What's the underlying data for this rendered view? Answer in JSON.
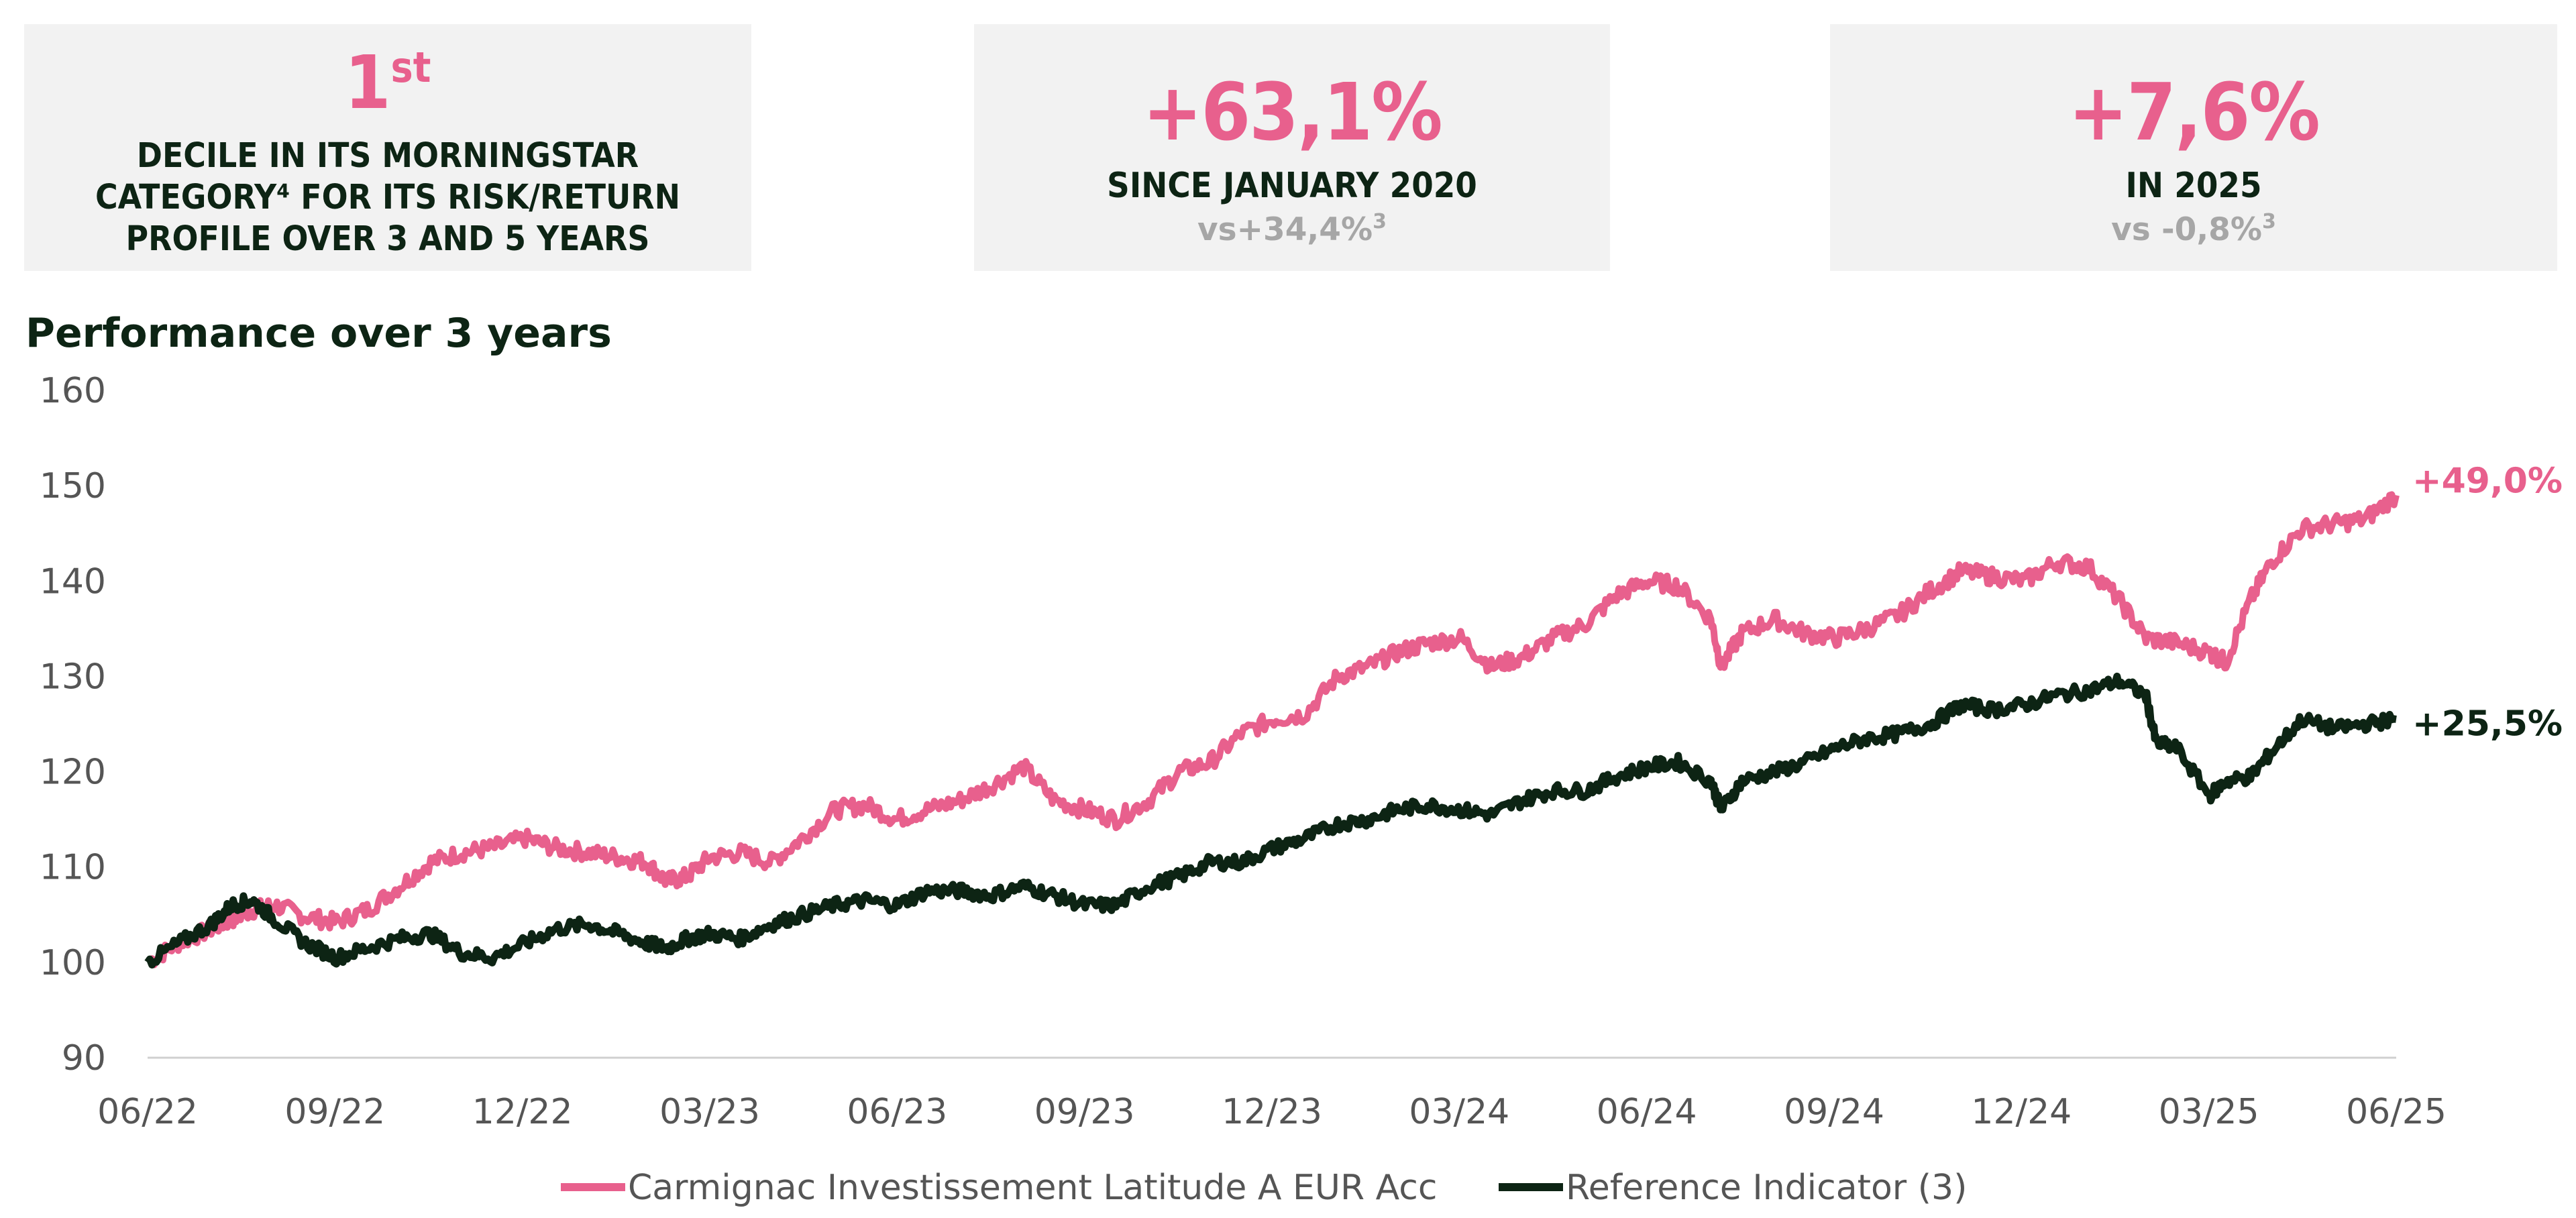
{
  "cards": [
    {
      "big": "1",
      "big_sup": "st",
      "sub": "DECILE IN ITS MORNINGSTAR CATEGORY⁴ FOR ITS RISK/RETURN PROFILE OVER 3 AND 5 YEARS"
    },
    {
      "big": "+63,1%",
      "sub": "SINCE JANUARY 2020",
      "vs": "vs+34,4%",
      "vs_sup": "3"
    },
    {
      "big": "+7,6%",
      "sub": "IN 2025",
      "vs": "vs -0,8%",
      "vs_sup": "3"
    }
  ],
  "colors": {
    "fund": "#e8608d",
    "reference": "#0d2414",
    "axis_text": "#555555",
    "card_bg": "#f2f2f2",
    "muted": "#a6a6a6"
  },
  "chart_data": {
    "type": "line",
    "title": "Performance over 3 years",
    "xlabel": "",
    "ylabel": "",
    "x_ticks": [
      "06/22",
      "09/22",
      "12/22",
      "03/23",
      "06/23",
      "09/23",
      "12/23",
      "03/24",
      "06/24",
      "09/24",
      "12/24",
      "03/25",
      "06/25"
    ],
    "xlim": [
      "2022-06",
      "2025-06"
    ],
    "y_ticks": [
      90,
      100,
      110,
      120,
      130,
      140,
      150,
      160
    ],
    "ylim": [
      90,
      160
    ],
    "grid": false,
    "legend_position": "bottom",
    "series": [
      {
        "name": "Carmignac Investissement Latitude A EUR Acc",
        "end_label": "+49,0%",
        "x": [
          "2022-06-30",
          "2022-07-15",
          "2022-07-31",
          "2022-08-10",
          "2022-08-20",
          "2022-08-31",
          "2022-09-15",
          "2022-09-30",
          "2022-10-15",
          "2022-10-31",
          "2022-11-15",
          "2022-11-30",
          "2022-12-15",
          "2022-12-31",
          "2023-01-15",
          "2023-01-31",
          "2023-02-15",
          "2023-02-28",
          "2023-03-10",
          "2023-03-20",
          "2023-03-31",
          "2023-04-15",
          "2023-04-30",
          "2023-05-15",
          "2023-05-31",
          "2023-06-15",
          "2023-06-30",
          "2023-07-15",
          "2023-07-31",
          "2023-08-15",
          "2023-08-31",
          "2023-09-15",
          "2023-09-30",
          "2023-10-15",
          "2023-10-31",
          "2023-11-15",
          "2023-11-30",
          "2023-12-15",
          "2023-12-31",
          "2024-01-15",
          "2024-01-31",
          "2024-02-15",
          "2024-02-29",
          "2024-03-15",
          "2024-03-31",
          "2024-04-15",
          "2024-04-30",
          "2024-05-15",
          "2024-05-31",
          "2024-06-15",
          "2024-06-30",
          "2024-07-15",
          "2024-07-31",
          "2024-08-05",
          "2024-08-15",
          "2024-08-31",
          "2024-09-15",
          "2024-09-30",
          "2024-10-15",
          "2024-10-31",
          "2024-11-15",
          "2024-11-30",
          "2024-12-15",
          "2024-12-31",
          "2025-01-15",
          "2025-01-31",
          "2025-02-15",
          "2025-02-28",
          "2025-03-15",
          "2025-03-31",
          "2025-04-08",
          "2025-04-20",
          "2025-04-30",
          "2025-05-15",
          "2025-05-31",
          "2025-06-15",
          "2025-06-30"
        ],
        "values": [
          100,
          102,
          103.5,
          104.5,
          105.5,
          106,
          104.8,
          104.2,
          105.5,
          108,
          110.5,
          111.5,
          112,
          113,
          112,
          111.5,
          111,
          110.5,
          108.5,
          109,
          111,
          111.5,
          110.5,
          113,
          116,
          116.5,
          115,
          116,
          117,
          118.5,
          120.5,
          117,
          116,
          115,
          117,
          120,
          121,
          124,
          125.5,
          126,
          130,
          131,
          132.5,
          133.5,
          134,
          131,
          132,
          134,
          135.5,
          138.5,
          140,
          139.5,
          136,
          131,
          134.5,
          136,
          134.5,
          134,
          135,
          136.5,
          139,
          141,
          140.5,
          140,
          142,
          141.5,
          138,
          134,
          133.5,
          132.5,
          131.5,
          138,
          142,
          145.5,
          146,
          146.5,
          149
        ]
      },
      {
        "name": "Reference Indicator (3)",
        "end_label": "+25,5%",
        "x": [
          "2022-06-30",
          "2022-07-15",
          "2022-07-31",
          "2022-08-10",
          "2022-08-20",
          "2022-08-31",
          "2022-09-15",
          "2022-09-30",
          "2022-10-15",
          "2022-10-31",
          "2022-11-15",
          "2022-11-30",
          "2022-12-15",
          "2022-12-31",
          "2023-01-15",
          "2023-01-31",
          "2023-02-15",
          "2023-02-28",
          "2023-03-10",
          "2023-03-20",
          "2023-03-31",
          "2023-04-15",
          "2023-04-30",
          "2023-05-15",
          "2023-05-31",
          "2023-06-15",
          "2023-06-30",
          "2023-07-15",
          "2023-07-31",
          "2023-08-15",
          "2023-08-31",
          "2023-09-15",
          "2023-09-30",
          "2023-10-15",
          "2023-10-31",
          "2023-11-15",
          "2023-11-30",
          "2023-12-15",
          "2023-12-31",
          "2024-01-15",
          "2024-01-31",
          "2024-02-15",
          "2024-02-29",
          "2024-03-15",
          "2024-03-31",
          "2024-04-15",
          "2024-04-30",
          "2024-05-15",
          "2024-05-31",
          "2024-06-15",
          "2024-06-30",
          "2024-07-15",
          "2024-07-31",
          "2024-08-05",
          "2024-08-15",
          "2024-08-31",
          "2024-09-15",
          "2024-09-30",
          "2024-10-15",
          "2024-10-31",
          "2024-11-15",
          "2024-11-30",
          "2024-12-15",
          "2024-12-31",
          "2025-01-15",
          "2025-01-31",
          "2025-02-15",
          "2025-02-28",
          "2025-03-05",
          "2025-03-15",
          "2025-03-31",
          "2025-04-08",
          "2025-04-20",
          "2025-04-30",
          "2025-05-15",
          "2025-05-31",
          "2025-06-15",
          "2025-06-30"
        ],
        "values": [
          100,
          102,
          104,
          106,
          106.5,
          104.5,
          102,
          100.5,
          101.5,
          102.5,
          103,
          101,
          100.5,
          102,
          103.5,
          104,
          103,
          102,
          101.5,
          102.5,
          103,
          102.5,
          104,
          105,
          106,
          106.5,
          106,
          107.5,
          107.5,
          107,
          108,
          107,
          106,
          106,
          108,
          109,
          110.5,
          110.5,
          112,
          113,
          114.5,
          115,
          116,
          116.5,
          116,
          115.5,
          117,
          118,
          118,
          119.5,
          120.5,
          121,
          119,
          116,
          119,
          120,
          121,
          122.5,
          123.5,
          124,
          125,
          127,
          126.5,
          127,
          128,
          128.5,
          129.5,
          128,
          123,
          122.5,
          117.5,
          119,
          119.5,
          122,
          125.5,
          124.5,
          125,
          125.5
        ]
      }
    ]
  }
}
